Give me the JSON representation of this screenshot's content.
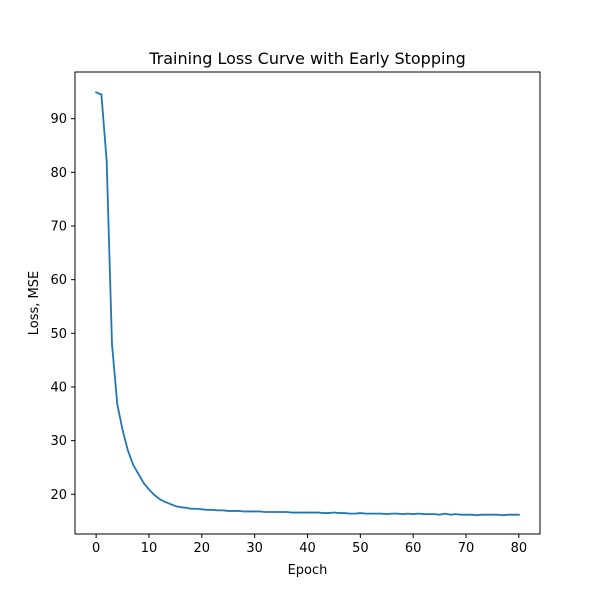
{
  "chart_data": {
    "type": "line",
    "title": "Training Loss Curve with Early Stopping",
    "xlabel": "Epoch",
    "ylabel": "Loss, MSE",
    "xlim": [
      -4,
      84
    ],
    "ylim": [
      12.6,
      98.7
    ],
    "xticks": [
      0,
      10,
      20,
      30,
      40,
      50,
      60,
      70,
      80
    ],
    "yticks": [
      20,
      30,
      40,
      50,
      60,
      70,
      80,
      90
    ],
    "grid": false,
    "series": [
      {
        "color": "#1f77b4",
        "x": [
          0,
          1,
          2,
          3,
          4,
          5,
          6,
          7,
          8,
          9,
          10,
          11,
          12,
          13,
          14,
          15,
          16,
          17,
          18,
          19,
          20,
          21,
          22,
          23,
          24,
          25,
          26,
          27,
          28,
          29,
          30,
          31,
          32,
          33,
          34,
          35,
          36,
          37,
          38,
          39,
          40,
          41,
          42,
          43,
          44,
          45,
          46,
          47,
          48,
          49,
          50,
          51,
          52,
          53,
          54,
          55,
          56,
          57,
          58,
          59,
          60,
          61,
          62,
          63,
          64,
          65,
          66,
          67,
          68,
          69,
          70,
          71,
          72,
          73,
          74,
          75,
          76,
          77,
          78,
          79,
          80
        ],
        "y": [
          94.9,
          94.5,
          82.0,
          48.0,
          36.8,
          32.0,
          28.2,
          25.5,
          23.8,
          22.1,
          20.9,
          19.9,
          19.1,
          18.6,
          18.2,
          17.8,
          17.6,
          17.5,
          17.3,
          17.3,
          17.2,
          17.1,
          17.1,
          17.0,
          17.0,
          16.9,
          16.9,
          16.9,
          16.8,
          16.8,
          16.8,
          16.8,
          16.7,
          16.7,
          16.7,
          16.7,
          16.7,
          16.6,
          16.6,
          16.6,
          16.6,
          16.6,
          16.6,
          16.5,
          16.5,
          16.6,
          16.5,
          16.5,
          16.4,
          16.4,
          16.5,
          16.4,
          16.4,
          16.4,
          16.4,
          16.3,
          16.4,
          16.4,
          16.3,
          16.4,
          16.3,
          16.4,
          16.3,
          16.3,
          16.3,
          16.2,
          16.4,
          16.2,
          16.3,
          16.2,
          16.2,
          16.2,
          16.1,
          16.2,
          16.2,
          16.2,
          16.2,
          16.1,
          16.2,
          16.2,
          16.2
        ]
      }
    ]
  }
}
